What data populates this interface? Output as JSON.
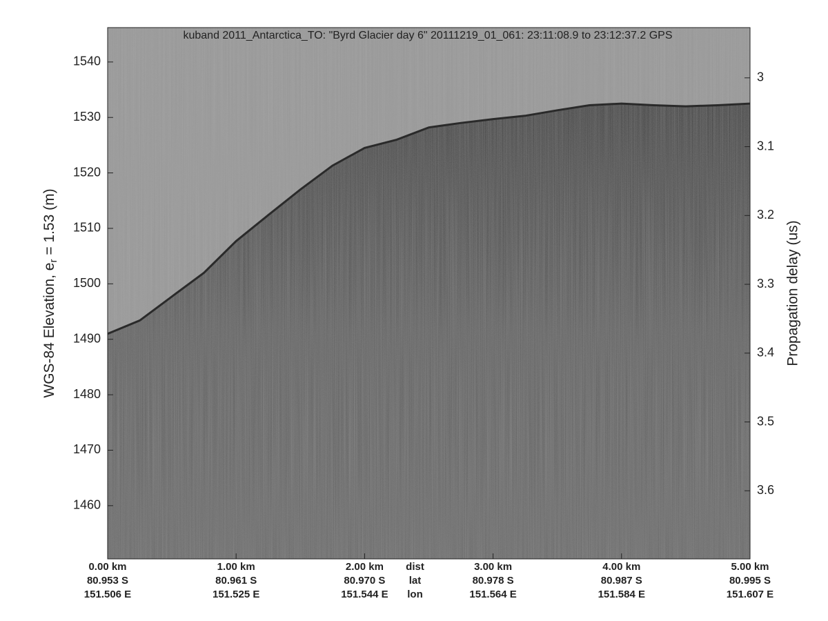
{
  "chart_data": {
    "type": "line",
    "title": "kuband 2011_Antarctica_TO: \"Byrd Glacier day 6\"  20111219_01_061: 23:11:08.9 to 23:12:37.2 GPS",
    "ylabel": {
      "main": "WGS-84 Elevation, e",
      "sub": "r",
      "rest": " = 1.53 (m)"
    },
    "y2label": "Propagation delay (us)",
    "xlim": [
      0,
      5
    ],
    "ylim": [
      1450.4,
      1546.2
    ],
    "y2lim": [
      3.699,
      2.927
    ],
    "xticks": [
      {
        "value": 0,
        "label": "0.00 km"
      },
      {
        "value": 1,
        "label": "1.00 km"
      },
      {
        "value": 2,
        "label": "2.00 km"
      },
      {
        "value": 3,
        "label": "3.00 km"
      },
      {
        "value": 4,
        "label": "4.00 km"
      },
      {
        "value": 5,
        "label": "5.00 km"
      }
    ],
    "xticks_lat": [
      "80.953 S",
      "80.961 S",
      "80.970 S",
      "80.978 S",
      "80.987 S",
      "80.995 S"
    ],
    "xticks_lon": [
      "151.506 E",
      "151.525 E",
      "151.544 E",
      "151.564 E",
      "151.584 E",
      "151.607 E"
    ],
    "x_row_labels": [
      "dist",
      "lat",
      "lon"
    ],
    "yticks": [
      1460,
      1470,
      1480,
      1490,
      1500,
      1510,
      1520,
      1530,
      1540
    ],
    "y2ticks": [
      3,
      3.1,
      3.2,
      3.3,
      3.4,
      3.5,
      3.6
    ],
    "series": [
      {
        "color": "#2a2a2a",
        "x": [
          0,
          0.25,
          0.5,
          0.75,
          1,
          1.25,
          1.5,
          1.75,
          2,
          2.25,
          2.5,
          2.75,
          3,
          3.25,
          3.5,
          3.75,
          4,
          4.25,
          4.5,
          4.75,
          5
        ],
        "values": [
          1491,
          1493.4,
          1497.7,
          1502,
          1507.7,
          1512.4,
          1517,
          1521.3,
          1524.5,
          1526,
          1528.2,
          1529,
          1529.7,
          1530.3,
          1531.3,
          1532.2,
          1532.5,
          1532.2,
          1532,
          1532.2,
          1532.5
        ]
      }
    ]
  }
}
